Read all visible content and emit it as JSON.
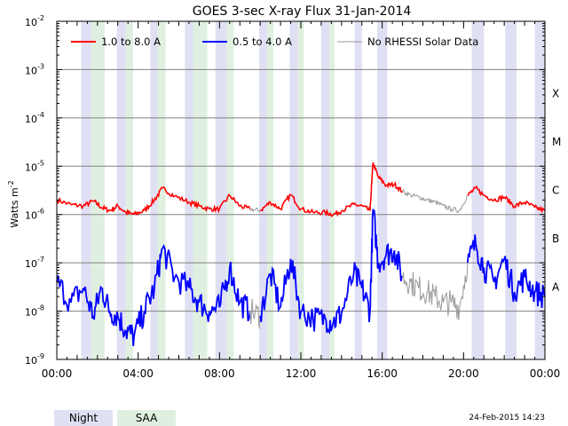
{
  "chart_data": {
    "type": "line",
    "title": "GOES 3-sec X-ray Flux   31-Jan-2014",
    "ylabel": "Watts m",
    "ylabel_sup": "-2",
    "y_scale": "log",
    "ylim": [
      1e-09,
      0.01
    ],
    "y_ticks": [
      {
        "base": "10",
        "exp": "-9"
      },
      {
        "base": "10",
        "exp": "-8"
      },
      {
        "base": "10",
        "exp": "-7"
      },
      {
        "base": "10",
        "exp": "-6"
      },
      {
        "base": "10",
        "exp": "-5"
      },
      {
        "base": "10",
        "exp": "-4"
      },
      {
        "base": "10",
        "exp": "-3"
      },
      {
        "base": "10",
        "exp": "-2"
      }
    ],
    "x_range_hours": [
      0,
      24
    ],
    "x_ticks": [
      "00:00",
      "04:00",
      "08:00",
      "12:00",
      "16:00",
      "20:00",
      "00:00"
    ],
    "grid": true,
    "flare_classes": [
      {
        "label": "X",
        "level": 0.0001
      },
      {
        "label": "M",
        "level": 1e-05
      },
      {
        "label": "C",
        "level": 1e-06
      },
      {
        "label": "B",
        "level": 1e-07
      },
      {
        "label": "A",
        "level": 1e-08
      }
    ],
    "legend_position": "top",
    "series": [
      {
        "name": "1.0 to 8.0 A",
        "color": "#ff0000",
        "x": [
          0,
          0.7,
          1.3,
          1.8,
          2.2,
          2.6,
          3.0,
          3.4,
          3.8,
          4.3,
          4.8,
          5.2,
          5.8,
          6.5,
          7.0,
          7.5,
          8.0,
          8.5,
          9.0,
          9.5,
          10.0,
          10.5,
          11.0,
          11.5,
          12.0,
          12.6,
          13.2,
          13.6,
          14.0,
          14.6,
          15.0,
          15.4,
          15.55,
          15.8,
          16.2,
          16.6,
          17.0,
          17.4,
          17.8,
          18.2,
          18.6,
          19.0,
          19.4,
          19.8,
          20.2,
          20.6,
          21.0,
          21.5,
          22.0,
          22.5,
          23.0,
          23.5,
          24.0
        ],
        "values": [
          2e-06,
          1.6e-06,
          1.5e-06,
          1.9e-06,
          1.4e-06,
          1.2e-06,
          1.5e-06,
          1.1e-06,
          1e-06,
          1.2e-06,
          2e-06,
          3.5e-06,
          2.4e-06,
          1.8e-06,
          1.5e-06,
          1.3e-06,
          1.3e-06,
          2.5e-06,
          1.5e-06,
          1.3e-06,
          1.2e-06,
          1.8e-06,
          1.3e-06,
          2.6e-06,
          1.3e-06,
          1.1e-06,
          1.1e-06,
          1e-06,
          1.2e-06,
          1.6e-06,
          1.5e-06,
          1.2e-06,
          1.2e-05,
          6e-06,
          4e-06,
          4.2e-06,
          3e-06,
          2.5e-06,
          2.3e-06,
          2e-06,
          1.8e-06,
          1.5e-06,
          1.3e-06,
          1.2e-06,
          2.5e-06,
          3.5e-06,
          2.5e-06,
          2e-06,
          2.3e-06,
          1.5e-06,
          1.8e-06,
          1.4e-06,
          1.2e-06
        ]
      },
      {
        "name": "0.5 to 4.0 A",
        "color": "#0000ff",
        "x": [
          0,
          0.7,
          1.3,
          1.8,
          2.2,
          2.6,
          3.0,
          3.4,
          3.8,
          4.3,
          4.8,
          5.2,
          5.8,
          6.5,
          7.0,
          7.5,
          8.0,
          8.5,
          9.0,
          9.5,
          10.0,
          10.5,
          11.0,
          11.5,
          12.0,
          12.6,
          13.2,
          13.6,
          14.0,
          14.6,
          15.0,
          15.4,
          15.55,
          15.8,
          16.2,
          16.6,
          17.0,
          17.4,
          17.8,
          18.2,
          18.6,
          19.0,
          19.4,
          19.8,
          20.2,
          20.6,
          21.0,
          21.5,
          22.0,
          22.5,
          23.0,
          23.5,
          24.0
        ],
        "values": [
          4e-08,
          1.5e-08,
          3e-08,
          8e-09,
          3e-08,
          1e-08,
          8e-09,
          4e-09,
          3e-09,
          1e-08,
          3e-08,
          2e-07,
          5e-08,
          3e-08,
          1.5e-08,
          1e-08,
          1.2e-08,
          8e-08,
          1.5e-08,
          1e-08,
          8e-09,
          6e-08,
          1.2e-08,
          1.2e-07,
          1e-08,
          7e-09,
          7e-09,
          6e-09,
          9e-09,
          6e-08,
          3e-08,
          1e-08,
          1.3e-06,
          1e-07,
          1.5e-07,
          1.8e-07,
          5e-08,
          4e-08,
          3e-08,
          2.5e-08,
          2e-08,
          1.5e-08,
          1.5e-08,
          1.2e-08,
          1e-07,
          2.5e-07,
          8e-08,
          4e-08,
          1.2e-07,
          2.5e-08,
          5e-08,
          2.5e-08,
          2e-08
        ]
      },
      {
        "name": "No RHESSI Solar Data",
        "color": "#999999"
      }
    ],
    "night_intervals": [
      [
        1.2,
        1.7
      ],
      [
        2.95,
        3.4
      ],
      [
        4.6,
        4.95
      ],
      [
        6.3,
        6.7
      ],
      [
        7.8,
        8.35
      ],
      [
        9.95,
        10.35
      ],
      [
        11.45,
        11.85
      ],
      [
        13.0,
        13.4
      ],
      [
        14.65,
        15.0
      ],
      [
        15.75,
        16.25
      ],
      [
        20.4,
        21.0
      ],
      [
        22.05,
        22.6
      ],
      [
        23.5,
        24.0
      ]
    ],
    "saa_intervals": [
      [
        1.7,
        2.35
      ],
      [
        3.4,
        3.75
      ],
      [
        4.95,
        5.35
      ],
      [
        6.7,
        7.4
      ],
      [
        8.35,
        8.7
      ],
      [
        10.35,
        10.65
      ],
      [
        11.85,
        12.15
      ],
      [
        13.4,
        13.65
      ]
    ]
  },
  "footer": {
    "night_label": "Night",
    "saa_label": "SAA",
    "timestamp": "24-Feb-2015 14:23"
  },
  "colors": {
    "night": "#e0e0f4",
    "saa": "#e0f0e0",
    "grid": "#808080"
  }
}
